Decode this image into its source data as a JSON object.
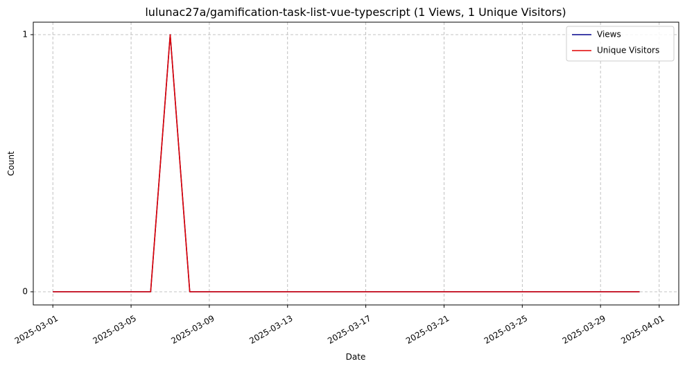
{
  "chart_data": {
    "type": "line",
    "title": "lulunac27a/gamification-task-list-vue-typescript (1 Views, 1 Unique Visitors)",
    "xlabel": "Date",
    "ylabel": "Count",
    "x_start": "2025-03-01",
    "x_end": "2025-03-31",
    "xlim": [
      "2025-02-28",
      "2025-04-02"
    ],
    "ylim": [
      0,
      1
    ],
    "x_ticks": [
      "2025-03-01",
      "2025-03-05",
      "2025-03-09",
      "2025-03-13",
      "2025-03-17",
      "2025-03-21",
      "2025-03-25",
      "2025-03-29",
      "2025-04-01"
    ],
    "y_ticks": [
      "0",
      "1"
    ],
    "grid": true,
    "legend_position": "top-right",
    "series": [
      {
        "name": "Views",
        "color": "#00008b",
        "points": [
          {
            "x": "2025-03-01",
            "y": 0
          },
          {
            "x": "2025-03-06",
            "y": 0
          },
          {
            "x": "2025-03-07",
            "y": 1
          },
          {
            "x": "2025-03-08",
            "y": 0
          },
          {
            "x": "2025-03-31",
            "y": 0
          }
        ]
      },
      {
        "name": "Unique Visitors",
        "color": "#e00000",
        "points": [
          {
            "x": "2025-03-01",
            "y": 0
          },
          {
            "x": "2025-03-06",
            "y": 0
          },
          {
            "x": "2025-03-07",
            "y": 1
          },
          {
            "x": "2025-03-08",
            "y": 0
          },
          {
            "x": "2025-03-31",
            "y": 0
          }
        ]
      }
    ]
  }
}
